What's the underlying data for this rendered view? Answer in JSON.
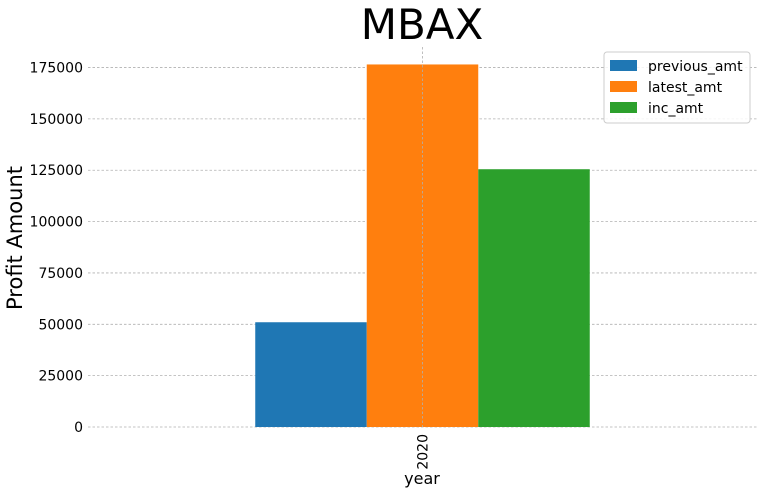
{
  "chart_data": {
    "type": "bar",
    "title": "MBAX",
    "xlabel": "year",
    "ylabel": "Profit Amount",
    "categories": [
      "2020"
    ],
    "series": [
      {
        "name": "previous_amt",
        "values": [
          51000
        ],
        "color": "#1f77b4"
      },
      {
        "name": "latest_amt",
        "values": [
          176500
        ],
        "color": "#ff7f0e"
      },
      {
        "name": "inc_amt",
        "values": [
          125500
        ],
        "color": "#2ca02c"
      }
    ],
    "ylim": [
      0,
      185000
    ],
    "yticks": [
      0,
      25000,
      50000,
      75000,
      100000,
      125000,
      150000,
      175000
    ],
    "grid": true,
    "legend_position": "top-right"
  }
}
